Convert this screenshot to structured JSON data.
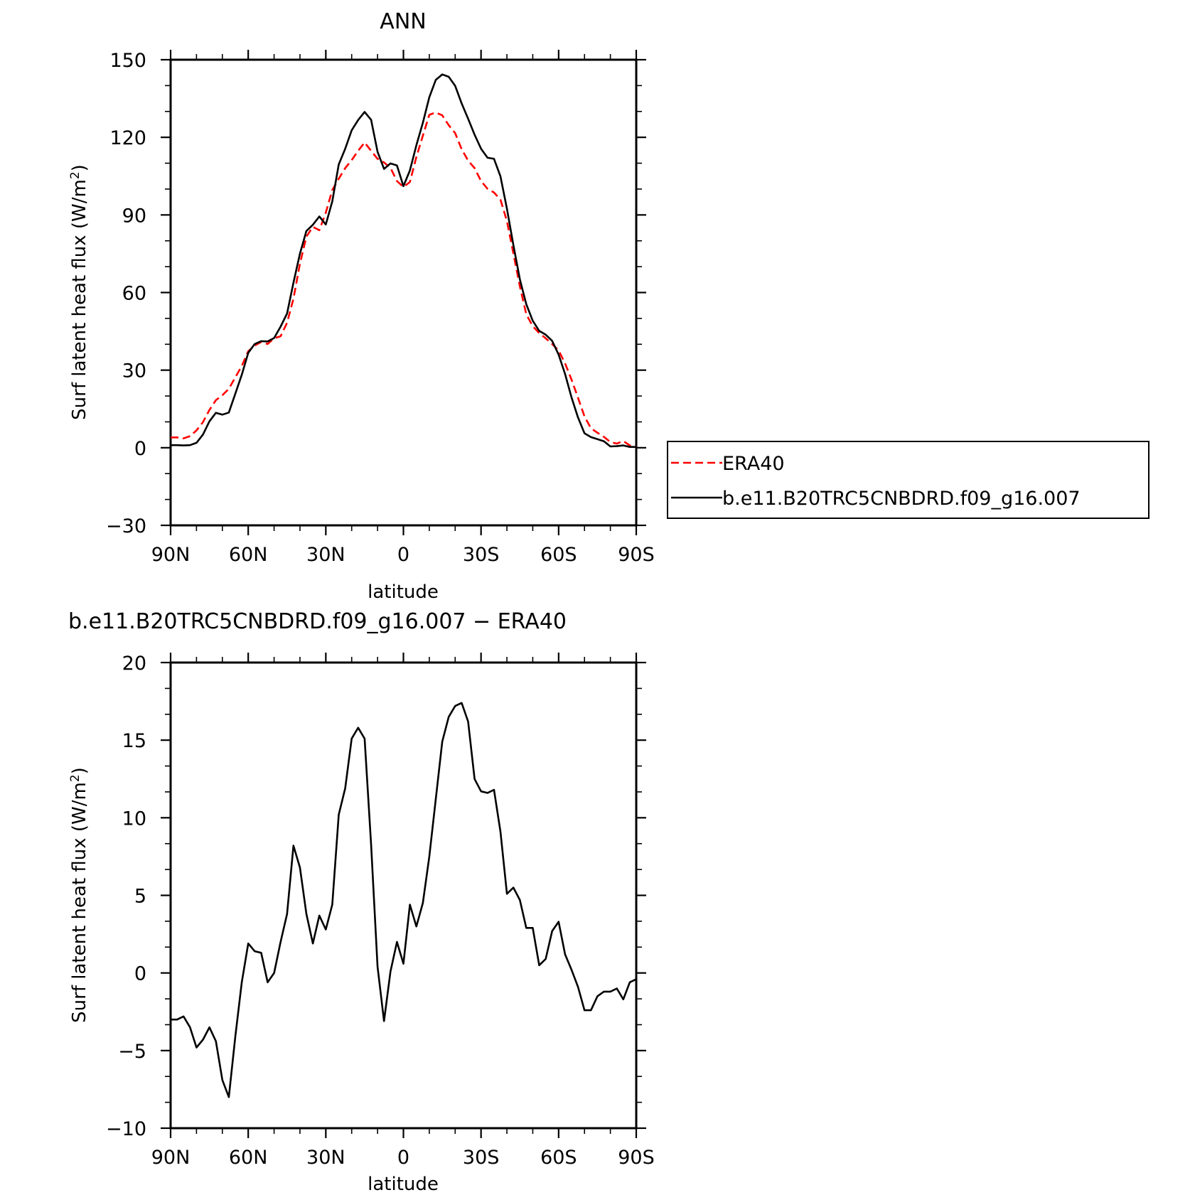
{
  "chart_data": [
    {
      "type": "line",
      "title": "ANN",
      "xlabel": "latitude",
      "ylabel": "Surf latent heat flux (W/m",
      "ylabel_sup": "2",
      "ylabel_close": ")",
      "xlim": [
        90,
        -90
      ],
      "ylim": [
        -30,
        150
      ],
      "xticks": [
        90,
        60,
        30,
        0,
        -30,
        -60,
        -90
      ],
      "xtick_labels": [
        "90N",
        "60N",
        "30N",
        "0",
        "30S",
        "60S",
        "90S"
      ],
      "yticks": [
        -30,
        0,
        30,
        60,
        90,
        120,
        150
      ],
      "ytick_labels": [
        "−30",
        "0",
        "30",
        "60",
        "90",
        "120",
        "150"
      ],
      "legend": "outside-right",
      "series": [
        {
          "name": "ERA40",
          "color": "#ff0000",
          "style": "dashed",
          "x": [
            90,
            87.5,
            85,
            82.5,
            80,
            77.5,
            75,
            72.5,
            70,
            67.5,
            65,
            62.5,
            60,
            57.5,
            55,
            52.5,
            50,
            47.5,
            45,
            42.5,
            40,
            37.5,
            35,
            32.5,
            30,
            27.5,
            25,
            22.5,
            20,
            17.5,
            15,
            12.5,
            10,
            7.5,
            5,
            2.5,
            0,
            -2.5,
            -5,
            -7.5,
            -10,
            -12.5,
            -15,
            -17.5,
            -20,
            -22.5,
            -25,
            -27.5,
            -30,
            -32.5,
            -35,
            -37.5,
            -40,
            -42.5,
            -45,
            -47.5,
            -50,
            -52.5,
            -55,
            -57.5,
            -60,
            -62.5,
            -65,
            -67.5,
            -70,
            -72.5,
            -75,
            -77.5,
            -80,
            -82.5,
            -85,
            -87.5,
            -90
          ],
          "y": [
            4,
            4,
            3.6,
            4.5,
            6.7,
            9.9,
            14.6,
            18.4,
            20.3,
            22.8,
            27.2,
            31.6,
            37.3,
            39.5,
            40.9,
            40.1,
            42.3,
            43.1,
            48.3,
            57.6,
            71.1,
            81.6,
            85.4,
            84.1,
            90.9,
            99.6,
            104,
            108.1,
            111.2,
            114.8,
            118,
            114.8,
            111.7,
            110.3,
            108.2,
            103.1,
            100.8,
            102.7,
            112.4,
            120.6,
            128.7,
            129.6,
            128.5,
            124.7,
            121.6,
            115.4,
            111,
            108.1,
            103.1,
            100.1,
            98.7,
            95.9,
            87.6,
            75.1,
            62.4,
            51.6,
            47,
            44.3,
            42.3,
            40.1,
            37.6,
            32.6,
            26.3,
            19.3,
            12.1,
            7.5,
            5.8,
            4.2,
            2.2,
            1.6,
            2.6,
            0.9,
            0.4
          ]
        },
        {
          "name": "b.e11.B20TRC5CNBDRD.f09_g16.007",
          "color": "#000000",
          "style": "solid",
          "x": [
            90,
            87.5,
            85,
            82.5,
            80,
            77.5,
            75,
            72.5,
            70,
            67.5,
            65,
            62.5,
            60,
            57.5,
            55,
            52.5,
            50,
            47.5,
            45,
            42.5,
            40,
            37.5,
            35,
            32.5,
            30,
            27.5,
            25,
            22.5,
            20,
            17.5,
            15,
            12.5,
            10,
            7.5,
            5,
            2.5,
            0,
            -2.5,
            -5,
            -7.5,
            -10,
            -12.5,
            -15,
            -17.5,
            -20,
            -22.5,
            -25,
            -27.5,
            -30,
            -32.5,
            -35,
            -37.5,
            -40,
            -42.5,
            -45,
            -47.5,
            -50,
            -52.5,
            -55,
            -57.5,
            -60,
            -62.5,
            -65,
            -67.5,
            -70,
            -72.5,
            -75,
            -77.5,
            -80,
            -82.5,
            -85,
            -87.5,
            -90
          ],
          "y": [
            1,
            1,
            0.9,
            1,
            1.9,
            5.1,
            10.2,
            13.5,
            12.8,
            13.6,
            20.9,
            28.2,
            36.7,
            40.1,
            41.2,
            41.1,
            42.4,
            46.8,
            51.9,
            63.8,
            75,
            83.8,
            86.2,
            89.4,
            86.3,
            95.2,
            109.5,
            115.6,
            122.7,
            126.7,
            129.8,
            126.8,
            114.4,
            107.8,
            109.9,
            109.1,
            101.1,
            107.2,
            116.9,
            125.6,
            135.5,
            142.2,
            144.3,
            143.4,
            139.9,
            133.1,
            127.2,
            121,
            115.6,
            112.1,
            111.7,
            104.9,
            92.4,
            78.3,
            65.1,
            55.5,
            49.1,
            45.2,
            43.7,
            41.3,
            36,
            28.5,
            19.4,
            11.7,
            5.6,
            4.1,
            3.3,
            2.5,
            0.5,
            0.6,
            0.9,
            0.3,
            0.3
          ]
        }
      ]
    },
    {
      "type": "line",
      "title": "b.e11.B20TRC5CNBDRD.f09_g16.007 − ERA40",
      "xlabel": "latitude",
      "ylabel": "Surf latent heat flux (W/m",
      "ylabel_sup": "2",
      "ylabel_close": ")",
      "xlim": [
        90,
        -90
      ],
      "ylim": [
        -10,
        20
      ],
      "xticks": [
        90,
        60,
        30,
        0,
        -30,
        -60,
        -90
      ],
      "xtick_labels": [
        "90N",
        "60N",
        "30N",
        "0",
        "30S",
        "60S",
        "90S"
      ],
      "yticks": [
        -10,
        -5,
        0,
        5,
        10,
        15,
        20
      ],
      "ytick_labels": [
        "−10",
        "−5",
        "0",
        "5",
        "10",
        "15",
        "20"
      ],
      "series": [
        {
          "color": "#000000",
          "style": "solid",
          "x": [
            90,
            87.5,
            85,
            82.5,
            80,
            77.5,
            75,
            72.5,
            70,
            67.5,
            65,
            62.5,
            60,
            57.5,
            55,
            52.5,
            50,
            47.5,
            45,
            42.5,
            40,
            37.5,
            35,
            32.5,
            30,
            27.5,
            25,
            22.5,
            20,
            17.5,
            15,
            12.5,
            10,
            7.5,
            5,
            2.5,
            0,
            -2.5,
            -5,
            -7.5,
            -10,
            -12.5,
            -15,
            -17.5,
            -20,
            -22.5,
            -25,
            -27.5,
            -30,
            -32.5,
            -35,
            -37.5,
            -40,
            -42.5,
            -45,
            -47.5,
            -50,
            -52.5,
            -55,
            -57.5,
            -60,
            -62.5,
            -65,
            -67.5,
            -70,
            -72.5,
            -75,
            -77.5,
            -80,
            -82.5,
            -85,
            -87.5,
            -90
          ],
          "y": [
            -3,
            -3,
            -2.8,
            -3.5,
            -4.8,
            -4.3,
            -3.5,
            -4.4,
            -6.9,
            -8,
            -4.1,
            -0.6,
            1.9,
            1.4,
            1.3,
            -0.6,
            0,
            2,
            3.8,
            8.2,
            6.8,
            3.8,
            1.9,
            3.7,
            2.8,
            4.4,
            10.2,
            11.9,
            15.1,
            15.8,
            15.1,
            8.3,
            0.4,
            -3.1,
            0.1,
            2,
            0.6,
            4.4,
            3,
            4.5,
            7.5,
            11.2,
            14.9,
            16.5,
            17.2,
            17.4,
            16.2,
            12.5,
            11.7,
            11.6,
            11.8,
            9.1,
            5.1,
            5.5,
            4.7,
            2.9,
            2.9,
            0.5,
            0.9,
            2.7,
            3.3,
            1.2,
            0.2,
            -0.9,
            -2.4,
            -2.4,
            -1.5,
            -1.2,
            -1.2,
            -1,
            -1.7,
            -0.6,
            -0.4
          ]
        }
      ]
    }
  ]
}
